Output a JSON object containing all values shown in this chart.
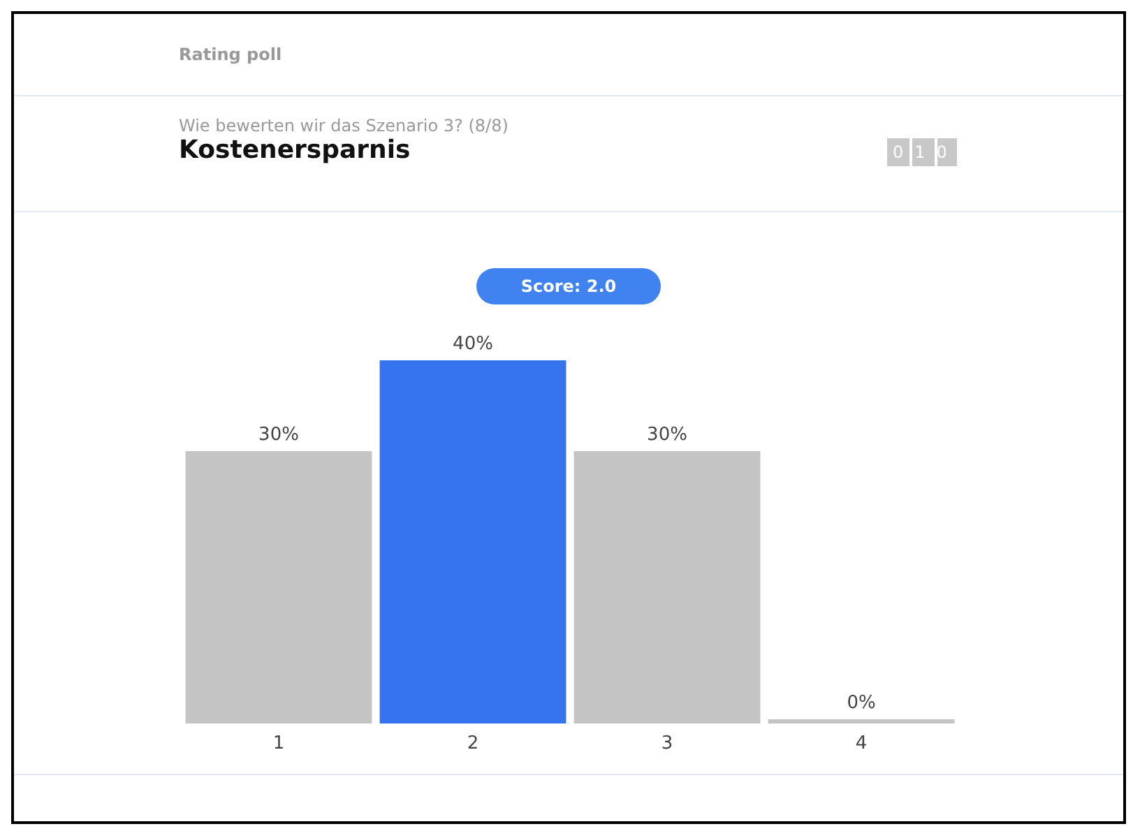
{
  "chart_data": {
    "type": "bar",
    "title": "Kostenersparnis",
    "subtitle": "Wie bewerten wir das Szenario 3? (8/8)",
    "annotations": [
      "Rating poll",
      "Score: 2.0",
      "010"
    ],
    "categories": [
      "1",
      "2",
      "3",
      "4"
    ],
    "values": [
      30,
      40,
      30,
      0
    ],
    "colors": [
      "#c4c4c4",
      "#3574ee",
      "#c4c4c4",
      "#c4c4c4"
    ],
    "value_labels": [
      "30%",
      "40%",
      "30%",
      "0%"
    ],
    "grid": false
  }
}
